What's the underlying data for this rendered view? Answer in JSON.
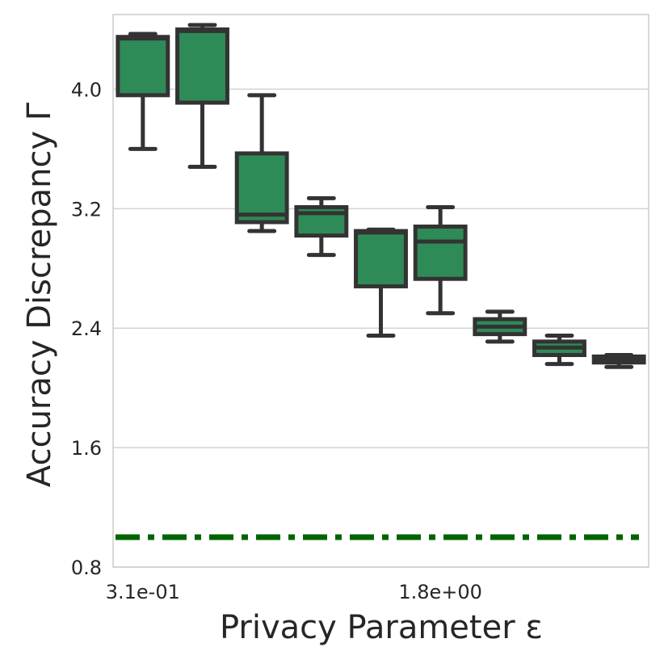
{
  "chart_data": {
    "type": "box",
    "xlabel": "Privacy Parameter ε",
    "ylabel": "Accuracy Discrepancy Γ",
    "ylim": [
      0.8,
      4.5
    ],
    "yticks": [
      "0.8",
      "1.6",
      "2.4",
      "3.2",
      "4.0"
    ],
    "xticks": [
      {
        "index": 0,
        "label": "3.1e-01"
      },
      {
        "index": 5,
        "label": "1.8e+00"
      }
    ],
    "grid": "horizontal",
    "colors": {
      "box_fill": "#2e8b57",
      "box_edge": "#333333",
      "reference_line": "#006400",
      "grid": "#d3d3d3"
    },
    "boxes": [
      {
        "whisker_low": 3.6,
        "q1": 3.96,
        "median": 4.34,
        "q3": 4.35,
        "whisker_high": 4.37
      },
      {
        "whisker_low": 3.48,
        "q1": 3.91,
        "median": 4.39,
        "q3": 4.4,
        "whisker_high": 4.43
      },
      {
        "whisker_low": 3.05,
        "q1": 3.11,
        "median": 3.16,
        "q3": 3.57,
        "whisker_high": 3.96
      },
      {
        "whisker_low": 2.89,
        "q1": 3.02,
        "median": 3.17,
        "q3": 3.21,
        "whisker_high": 3.27
      },
      {
        "whisker_low": 2.35,
        "q1": 2.68,
        "median": 3.04,
        "q3": 3.05,
        "whisker_high": 3.06
      },
      {
        "whisker_low": 2.5,
        "q1": 2.73,
        "median": 2.98,
        "q3": 3.08,
        "whisker_high": 3.21
      },
      {
        "whisker_low": 2.31,
        "q1": 2.36,
        "median": 2.41,
        "q3": 2.46,
        "whisker_high": 2.51
      },
      {
        "whisker_low": 2.16,
        "q1": 2.22,
        "median": 2.27,
        "q3": 2.31,
        "whisker_high": 2.35
      },
      {
        "whisker_low": 2.14,
        "q1": 2.17,
        "median": 2.19,
        "q3": 2.21,
        "whisker_high": 2.22
      }
    ],
    "reference_line": {
      "y": 1.0,
      "style": "dash-dot"
    }
  }
}
